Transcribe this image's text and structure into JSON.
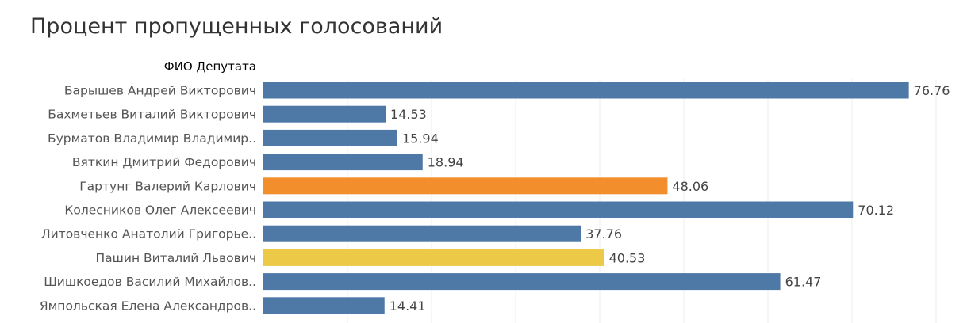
{
  "chart_data": {
    "type": "bar",
    "orientation": "horizontal",
    "title": "Процент пропущенных голосований",
    "row_header": "ФИО Депутата",
    "categories": [
      "Барышев Андрей Викторович",
      "Бахметьев Виталий Викторович",
      "Бурматов Владимир Владимир..",
      "Вяткин Дмитрий Федорович",
      "Гартунг Валерий Карлович",
      "Колесников Олег Алексеевич",
      "Литовченко Анатолий Григорье..",
      "Пашин Виталий Львович",
      "Шишкоедов Василий Михайлов..",
      "Ямпольская Елена Александров.."
    ],
    "values": [
      76.76,
      14.53,
      15.94,
      18.94,
      48.06,
      70.12,
      37.76,
      40.53,
      61.47,
      14.41
    ],
    "value_labels": [
      "76.76",
      "14.53",
      "15.94",
      "18.94",
      "48.06",
      "70.12",
      "37.76",
      "40.53",
      "61.47",
      "14.41"
    ],
    "colors": [
      "#4e79a7",
      "#4e79a7",
      "#4e79a7",
      "#4e79a7",
      "#f28e2b",
      "#4e79a7",
      "#4e79a7",
      "#edc948",
      "#4e79a7",
      "#4e79a7"
    ],
    "xlim": [
      0,
      80
    ],
    "grid": true,
    "gridline_step": 10
  }
}
